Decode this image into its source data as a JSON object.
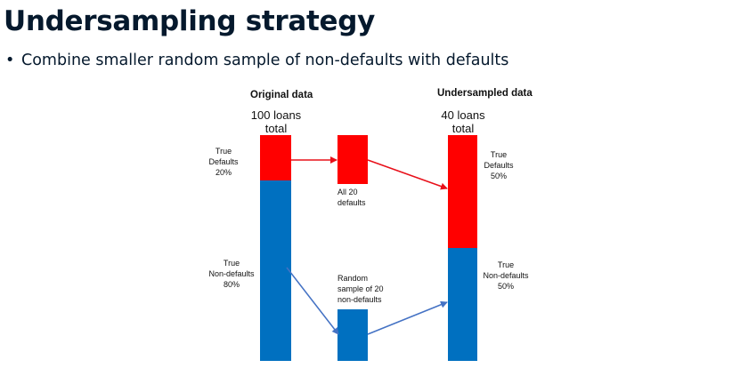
{
  "slide": {
    "title": "Undersampling strategy",
    "bullet": "Combine smaller random sample of non-defaults with defaults"
  },
  "diagram": {
    "original": {
      "header": "Original data",
      "count_line1": "100 loans",
      "count_line2": "total",
      "defaults_label": [
        "True",
        "Defaults",
        "20%"
      ],
      "nondefaults_label": [
        "True",
        "Non-defaults",
        "80%"
      ],
      "defaults_share": 0.2
    },
    "middle": {
      "defaults_label": [
        "All 20",
        "defaults"
      ],
      "nondefaults_label": [
        "Random",
        "sample of 20",
        "non-defaults"
      ]
    },
    "undersampled": {
      "header": "Undersampled data",
      "count_line1": "40 loans",
      "count_line2": "total",
      "defaults_label": [
        "True",
        "Defaults",
        "50%"
      ],
      "nondefaults_label": [
        "True",
        "Non-defaults",
        "50%"
      ],
      "defaults_share": 0.5
    },
    "colors": {
      "defaults": "#ff0000",
      "nondefaults": "#0070c0",
      "arrow_defaults": "#e8101a",
      "arrow_nondefaults": "#4472c4"
    }
  }
}
